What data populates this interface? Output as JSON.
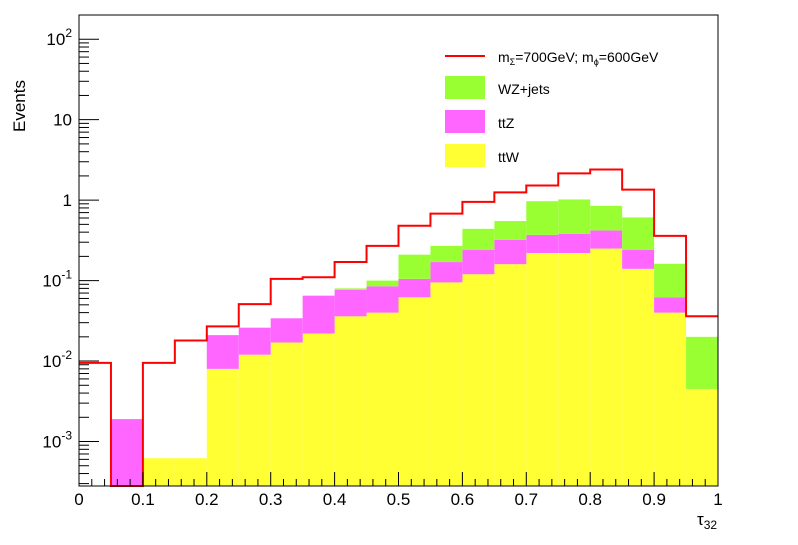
{
  "chart_data": {
    "type": "histogram",
    "title": "",
    "xlabel_main": "τ",
    "xlabel_sub": "32",
    "ylabel": "Events",
    "xlim": [
      0,
      1
    ],
    "ylim": [
      0.00028,
      200
    ],
    "yscale": "log",
    "grid": false,
    "legend_position": "top-right",
    "x_ticks": [
      "0",
      "0.1",
      "0.2",
      "0.3",
      "0.4",
      "0.5",
      "0.6",
      "0.7",
      "0.8",
      "0.9",
      "1"
    ],
    "y_tick_labels": [
      {
        "base": "10",
        "exp": "-3"
      },
      {
        "base": "10",
        "exp": "-2"
      },
      {
        "base": "10",
        "exp": "-1"
      },
      {
        "base": "1",
        "exp": ""
      },
      {
        "base": "10",
        "exp": ""
      },
      {
        "base": "10",
        "exp": "2"
      }
    ],
    "bin_edges": [
      0,
      0.05,
      0.1,
      0.15,
      0.2,
      0.25,
      0.3,
      0.35,
      0.4,
      0.45,
      0.5,
      0.55,
      0.6,
      0.65,
      0.7,
      0.75,
      0.8,
      0.85,
      0.9,
      0.95,
      1.0
    ],
    "stacked_series": [
      {
        "name": "ttW",
        "color": "#ffff33",
        "values": [
          0,
          0,
          0.00062,
          0.00062,
          0.008,
          0.012,
          0.017,
          0.022,
          0.036,
          0.04,
          0.062,
          0.095,
          0.12,
          0.16,
          0.22,
          0.22,
          0.25,
          0.14,
          0.04,
          0.0045
        ]
      },
      {
        "name": "ttZ",
        "color": "#ff66ff",
        "values": [
          0,
          0.0019,
          0,
          0,
          0.013,
          0.014,
          0.017,
          0.043,
          0.041,
          0.045,
          0.043,
          0.075,
          0.12,
          0.16,
          0.15,
          0.16,
          0.17,
          0.1,
          0.022,
          0
        ]
      },
      {
        "name": "WZ+jets",
        "color": "#99ff33",
        "values": [
          0,
          0,
          0,
          0,
          0,
          0,
          0,
          0,
          0.003,
          0.015,
          0.105,
          0.1,
          0.2,
          0.23,
          0.6,
          0.64,
          0.43,
          0.37,
          0.1,
          0.0155
        ]
      }
    ],
    "signal_series": {
      "name_parts": [
        "m",
        "Σ",
        "=700GeV; m",
        "ϕ",
        "=600GeV"
      ],
      "color": "#ff0000",
      "values": [
        0.0095,
        0,
        0.0095,
        0.018,
        0.027,
        0.051,
        0.105,
        0.11,
        0.17,
        0.27,
        0.48,
        0.68,
        0.95,
        1.25,
        1.52,
        2.15,
        2.4,
        1.35,
        0.36,
        0.036
      ]
    }
  }
}
